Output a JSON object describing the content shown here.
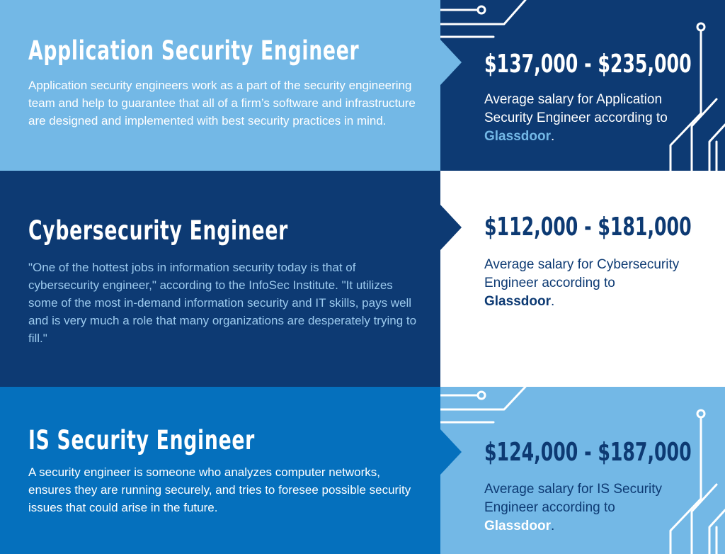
{
  "colors": {
    "light_blue": "#73b8e6",
    "navy": "#0d3a73",
    "mid_blue": "#0570bd",
    "white": "#ffffff",
    "pale_blue_text": "#9ccaee"
  },
  "rows": [
    {
      "title": "Application Security Engineer",
      "description": "Application security engineers work as a part of the security engineering team and help to guarantee that all of a firm’s software and infrastructure are designed and implemented with best security practices in mind.",
      "salary": "$137,000 - $235,000",
      "note_prefix": "Average salary for Application Security Engineer according to ",
      "source": "Glassdoor",
      "note_suffix": "."
    },
    {
      "title": "Cybersecurity Engineer",
      "description": "\"One of the hottest jobs in information security today is that of cybersecurity engineer,\" according to the InfoSec Institute. \"It utilizes some of the most in-demand information security and IT skills, pays well and is very much a role that many organizations are desperately trying to fill.\"",
      "salary": "$112,000 - $181,000",
      "note_prefix": "Average salary for Cybersecurity Engineer according to ",
      "source": "Glassdoor",
      "note_suffix": "."
    },
    {
      "title": "IS Security Engineer",
      "description": "A security engineer is someone who analyzes computer networks, ensures they are running securely, and tries to foresee possible security issues that could arise in the future.",
      "salary": "$124,000 - $187,000",
      "note_prefix": "Average salary for IS Security Engineer according to ",
      "source": "Glassdoor",
      "note_suffix": "."
    }
  ]
}
